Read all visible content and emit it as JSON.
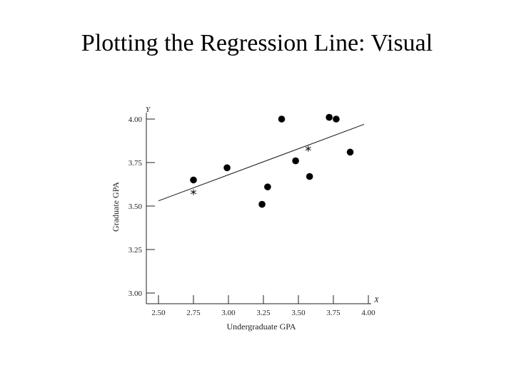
{
  "slide": {
    "title": "Plotting the Regression Line: Visual"
  },
  "chart_data": {
    "type": "scatter",
    "title": "",
    "xlabel": "Undergraduate GPA",
    "ylabel": "Graduate GPA",
    "x_axis_letter": "X",
    "y_axis_letter": "Y",
    "xlim": [
      2.5,
      4.0
    ],
    "ylim": [
      3.0,
      4.0
    ],
    "x_ticks": [
      "2.50",
      "2.75",
      "3.00",
      "3.25",
      "3.50",
      "3.75",
      "4.00"
    ],
    "y_ticks": [
      "3.00",
      "3.25",
      "3.50",
      "3.75",
      "4.00"
    ],
    "grid": false,
    "series": [
      {
        "marker": "dot",
        "color": "#000000",
        "points": [
          {
            "x": 2.75,
            "y": 3.65
          },
          {
            "x": 2.99,
            "y": 3.72
          },
          {
            "x": 3.24,
            "y": 3.51
          },
          {
            "x": 3.28,
            "y": 3.61
          },
          {
            "x": 3.38,
            "y": 4.0
          },
          {
            "x": 3.48,
            "y": 3.76
          },
          {
            "x": 3.58,
            "y": 3.67
          },
          {
            "x": 3.72,
            "y": 4.01
          },
          {
            "x": 3.77,
            "y": 4.0
          },
          {
            "x": 3.87,
            "y": 3.81
          }
        ]
      },
      {
        "marker": "asterisk",
        "color": "#000000",
        "points": [
          {
            "x": 2.75,
            "y": 3.58
          },
          {
            "x": 3.57,
            "y": 3.83
          }
        ]
      }
    ],
    "regression_line": {
      "x": [
        2.5,
        3.97
      ],
      "y": [
        3.53,
        3.97
      ]
    }
  }
}
